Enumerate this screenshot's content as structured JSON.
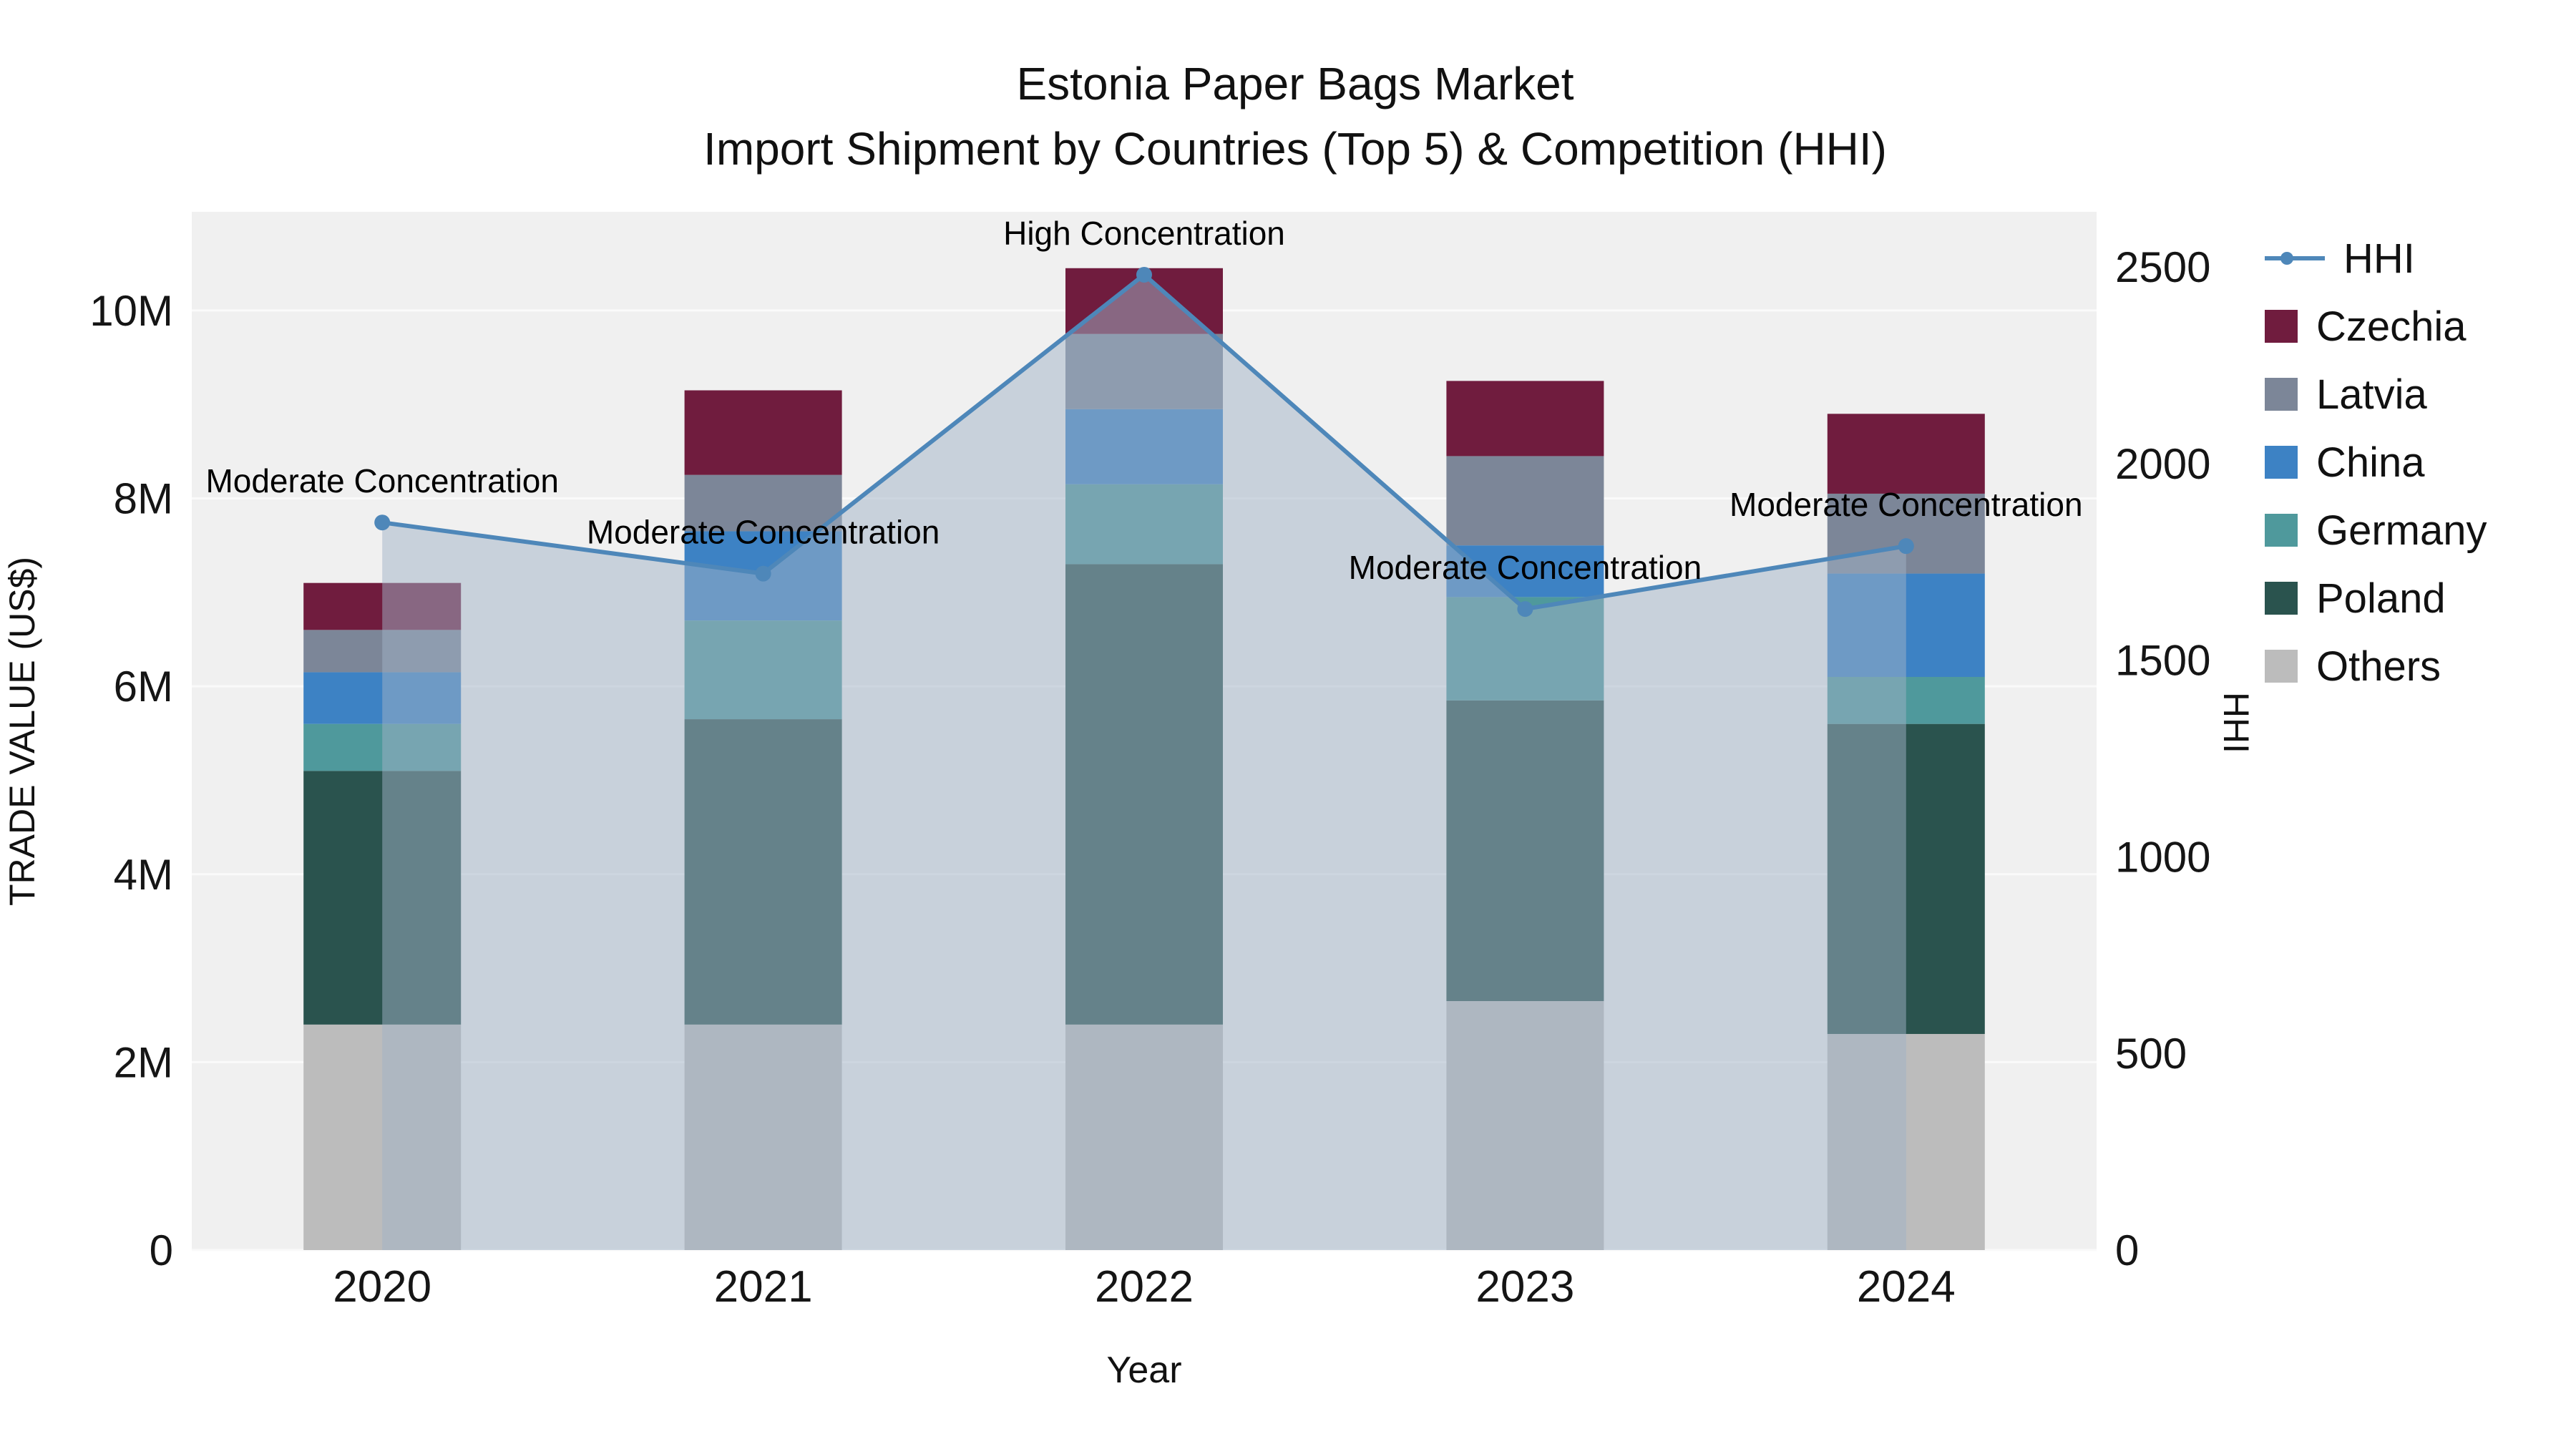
{
  "title": {
    "line1": "Estonia Paper Bags Market",
    "line2": "Import Shipment by Countries (Top 5) & Competition (HHI)"
  },
  "axes": {
    "x_label": "Year",
    "y_left_label": "TRADE VALUE (US$)",
    "y_right_label": "HHI"
  },
  "chart_data": {
    "type": "stacked-bar+line",
    "title": "Estonia Paper Bags Market — Import Shipment by Countries (Top 5) & Competition (HHI)",
    "xlabel": "Year",
    "ylabel_left": "TRADE VALUE (US$)",
    "ylabel_right": "HHI",
    "unit": "Million US$",
    "categories": [
      "2020",
      "2021",
      "2022",
      "2023",
      "2024"
    ],
    "series": [
      {
        "name": "Others",
        "color": "#bcbcbc",
        "values": [
          2.4,
          2.4,
          2.4,
          2.65,
          2.3
        ]
      },
      {
        "name": "Poland",
        "color": "#2a534e",
        "values": [
          2.7,
          3.25,
          4.9,
          3.2,
          3.3
        ]
      },
      {
        "name": "Germany",
        "color": "#4f999c",
        "values": [
          0.5,
          1.05,
          0.85,
          1.1,
          0.5
        ]
      },
      {
        "name": "China",
        "color": "#3d82c4",
        "values": [
          0.55,
          0.95,
          0.8,
          0.55,
          1.1
        ]
      },
      {
        "name": "Latvia",
        "color": "#7c8698",
        "values": [
          0.45,
          0.6,
          0.8,
          0.95,
          0.85
        ]
      },
      {
        "name": "Czechia",
        "color": "#701c3e",
        "values": [
          0.5,
          0.9,
          0.7,
          0.8,
          0.85
        ]
      }
    ],
    "totals": [
      7.1,
      9.15,
      10.45,
      9.25,
      8.9
    ],
    "line": {
      "name": "HHI",
      "axis": "right",
      "color": "#4e87b9",
      "area_fill": "rgba(160,178,197,0.5)",
      "values": [
        1850,
        1720,
        2480,
        1630,
        1790
      ]
    },
    "annotations": [
      "Moderate Concentration",
      "Moderate Concentration",
      "High Concentration",
      "Moderate Concentration",
      "Moderate Concentration"
    ],
    "y_left_range": [
      0,
      11.05
    ],
    "y_right_range": [
      0,
      2640
    ],
    "left_ticks": [
      {
        "v": 0,
        "label": "0"
      },
      {
        "v": 2,
        "label": "2M"
      },
      {
        "v": 4,
        "label": "4M"
      },
      {
        "v": 6,
        "label": "6M"
      },
      {
        "v": 8,
        "label": "8M"
      },
      {
        "v": 10,
        "label": "10M"
      }
    ],
    "right_ticks": [
      {
        "v": 0,
        "label": "0"
      },
      {
        "v": 500,
        "label": "500"
      },
      {
        "v": 1000,
        "label": "1000"
      },
      {
        "v": 1500,
        "label": "1500"
      },
      {
        "v": 2000,
        "label": "2000"
      },
      {
        "v": 2500,
        "label": "2500"
      }
    ],
    "grid": true,
    "legend_position": "right"
  },
  "legend": {
    "items": [
      {
        "label": "HHI",
        "type": "line",
        "color": "#4e87b9"
      },
      {
        "label": "Czechia",
        "type": "swatch",
        "color": "#701c3e"
      },
      {
        "label": "Latvia",
        "type": "swatch",
        "color": "#7c8698"
      },
      {
        "label": "China",
        "type": "swatch",
        "color": "#3d82c4"
      },
      {
        "label": "Germany",
        "type": "swatch",
        "color": "#4f999c"
      },
      {
        "label": "Poland",
        "type": "swatch",
        "color": "#2a534e"
      },
      {
        "label": "Others",
        "type": "swatch",
        "color": "#bcbcbc"
      }
    ]
  }
}
